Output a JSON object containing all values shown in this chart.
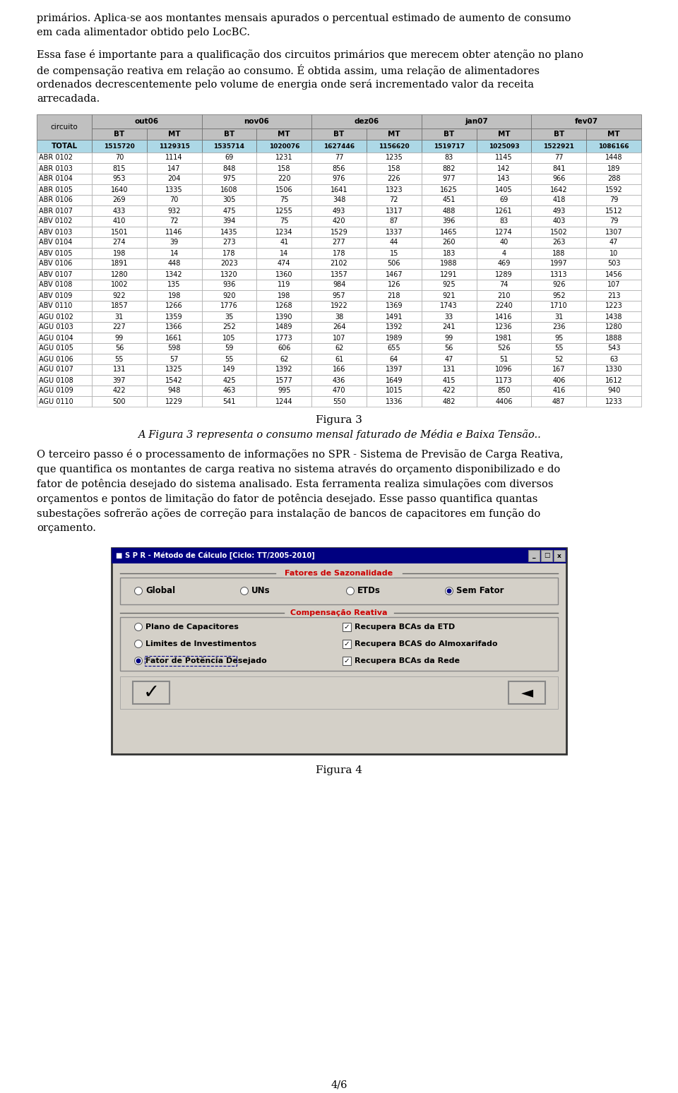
{
  "page_bg": "#ffffff",
  "text_color": "#000000",
  "table_header_months": [
    "out06",
    "nov06",
    "dez06",
    "jan07",
    "fev07"
  ],
  "table_col_circuito": "circuito",
  "table_total_label": "TOTAL",
  "table_total_values": [
    1515720,
    1129315,
    1535714,
    1020076,
    1627446,
    1156620,
    1519717,
    1025093,
    1522921,
    1086166
  ],
  "table_rows": [
    [
      "ABR 0102",
      70,
      1114,
      69,
      1231,
      77,
      1235,
      83,
      1145,
      77,
      1448
    ],
    [
      "ABR 0103",
      815,
      147,
      848,
      158,
      856,
      158,
      882,
      142,
      841,
      189
    ],
    [
      "ABR 0104",
      953,
      204,
      975,
      220,
      976,
      226,
      977,
      143,
      966,
      288
    ],
    [
      "ABR 0105",
      1640,
      1335,
      1608,
      1506,
      1641,
      1323,
      1625,
      1405,
      1642,
      1592
    ],
    [
      "ABR 0106",
      269,
      70,
      305,
      75,
      348,
      72,
      451,
      69,
      418,
      79
    ],
    [
      "ABR 0107",
      433,
      932,
      475,
      1255,
      493,
      1317,
      488,
      1261,
      493,
      1512
    ],
    [
      "ABV 0102",
      410,
      72,
      394,
      75,
      420,
      87,
      396,
      83,
      403,
      79
    ],
    [
      "ABV 0103",
      1501,
      1146,
      1435,
      1234,
      1529,
      1337,
      1465,
      1274,
      1502,
      1307
    ],
    [
      "ABV 0104",
      274,
      39,
      273,
      41,
      277,
      44,
      260,
      40,
      263,
      47
    ],
    [
      "ABV 0105",
      198,
      14,
      178,
      14,
      178,
      15,
      183,
      4,
      188,
      10
    ],
    [
      "ABV 0106",
      1891,
      448,
      2023,
      474,
      2102,
      506,
      1988,
      469,
      1997,
      503
    ],
    [
      "ABV 0107",
      1280,
      1342,
      1320,
      1360,
      1357,
      1467,
      1291,
      1289,
      1313,
      1456
    ],
    [
      "ABV 0108",
      1002,
      135,
      936,
      119,
      984,
      126,
      925,
      74,
      926,
      107
    ],
    [
      "ABV 0109",
      922,
      198,
      920,
      198,
      957,
      218,
      921,
      210,
      952,
      213
    ],
    [
      "ABV 0110",
      1857,
      1266,
      1776,
      1268,
      1922,
      1369,
      1743,
      2240,
      1710,
      1223
    ],
    [
      "AGU 0102",
      31,
      1359,
      35,
      1390,
      38,
      1491,
      33,
      1416,
      31,
      1438
    ],
    [
      "AGU 0103",
      227,
      1366,
      252,
      1489,
      264,
      1392,
      241,
      1236,
      236,
      1280
    ],
    [
      "AGU 0104",
      99,
      1661,
      105,
      1773,
      107,
      1989,
      99,
      1981,
      95,
      1888
    ],
    [
      "AGU 0105",
      56,
      598,
      59,
      606,
      62,
      655,
      56,
      526,
      55,
      543
    ],
    [
      "AGU 0106",
      55,
      57,
      55,
      62,
      61,
      64,
      47,
      51,
      52,
      63
    ],
    [
      "AGU 0107",
      131,
      1325,
      149,
      1392,
      166,
      1397,
      131,
      1096,
      167,
      1330
    ],
    [
      "AGU 0108",
      397,
      1542,
      425,
      1577,
      436,
      1649,
      415,
      1173,
      406,
      1612
    ],
    [
      "AGU 0109",
      422,
      948,
      463,
      995,
      470,
      1015,
      422,
      850,
      416,
      940
    ],
    [
      "AGU 0110",
      500,
      1229,
      541,
      1244,
      550,
      1336,
      482,
      4406,
      487,
      1233
    ]
  ],
  "fig3_label": "Figura 3",
  "fig3_caption": "A Figura 3 representa o consumo mensal faturado de Média e Baixa Tensão..",
  "fig4_label": "Figura 4",
  "page_num": "4/6",
  "table_header_bg": "#c0c0c0",
  "table_total_bg": "#add8e6",
  "table_row_bg": "#ffffff",
  "table_border_color": "#666666"
}
